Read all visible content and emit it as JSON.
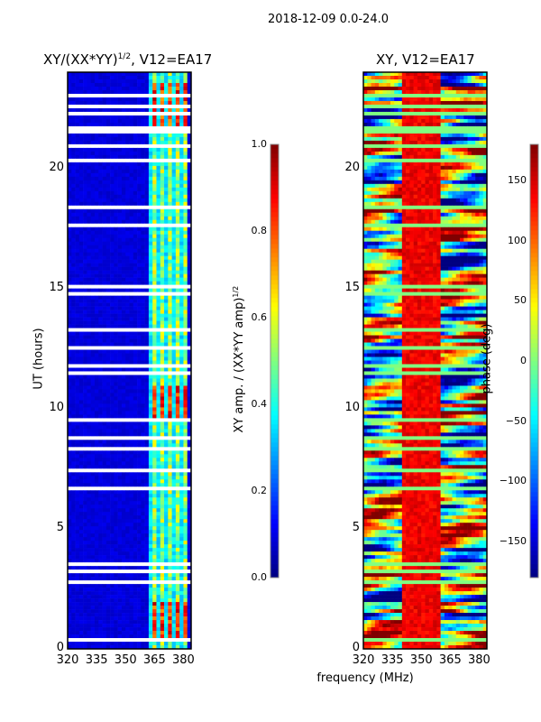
{
  "suptitle": "2018-12-09 0.0-24.0",
  "xlabel": "frequency (MHz)",
  "chart_data": [
    {
      "type": "heatmap",
      "title_main": "XY/(XX*YY)",
      "title_sup": "1/2",
      "title_rest": ", V12=EA17",
      "ylabel": "UT (hours)",
      "xlim": [
        320,
        384
      ],
      "ylim": [
        0,
        24
      ],
      "xticks": [
        "320",
        "335",
        "350",
        "365",
        "380"
      ],
      "xtick_values": [
        320,
        335,
        350,
        365,
        380
      ],
      "yticks": [
        "0",
        "5",
        "10",
        "15",
        "20"
      ],
      "ytick_values": [
        0,
        5,
        10,
        15,
        20
      ],
      "colormap": "jet",
      "clim": [
        0,
        1
      ],
      "colorbar_label_main": "XY amp. / (XX*YY amp)",
      "colorbar_label_sup": "1/2",
      "colorbar_ticks": [
        "0.0",
        "0.2",
        "0.4",
        "0.6",
        "0.8",
        "1.0"
      ],
      "colorbar_tick_values": [
        0,
        0.2,
        0.4,
        0.6,
        0.8,
        1.0
      ],
      "low_band_value": 0.07,
      "signal_channels_mhz": [
        362,
        382
      ],
      "signal_value": 0.4,
      "high_ut_ranges": [
        [
          0.5,
          2
        ],
        [
          9.5,
          11
        ],
        [
          21.5,
          23.5
        ]
      ],
      "high_value": 0.95
    },
    {
      "type": "heatmap",
      "title_main": "XY, V12=EA17",
      "xlim": [
        320,
        384
      ],
      "ylim": [
        0,
        24
      ],
      "xticks": [
        "320",
        "335",
        "350",
        "365",
        "380"
      ],
      "xtick_values": [
        320,
        335,
        350,
        365,
        380
      ],
      "yticks": [
        "0",
        "5",
        "10",
        "15",
        "20"
      ],
      "ytick_values": [
        0,
        5,
        10,
        15,
        20
      ],
      "colormap": "jet",
      "clim": [
        -180,
        180
      ],
      "colorbar_label": "phase (deg)",
      "colorbar_ticks": [
        "−150",
        "−100",
        "−50",
        "0",
        "50",
        "100",
        "150"
      ],
      "colorbar_tick_values": [
        -150,
        -100,
        -50,
        0,
        50,
        100,
        150
      ],
      "phase_center_band_mhz": [
        340,
        360
      ],
      "phase_center_value": 140
    }
  ],
  "flagged_ut_hours": [
    0.4,
    0.9,
    2.1,
    2.8,
    3.2,
    3.5,
    6.6,
    6.7,
    7.4,
    7.8,
    8.1,
    8.3,
    8.8,
    9.5,
    10.2,
    11.5,
    11.8,
    12.5,
    12.6,
    13.3,
    13.8,
    14.4,
    14.8,
    15.1,
    16.2,
    17.6,
    18.4,
    19.2,
    19.8,
    20.3,
    20.9,
    21.5,
    21.7,
    22.3,
    22.6,
    23.0,
    23.1
  ]
}
